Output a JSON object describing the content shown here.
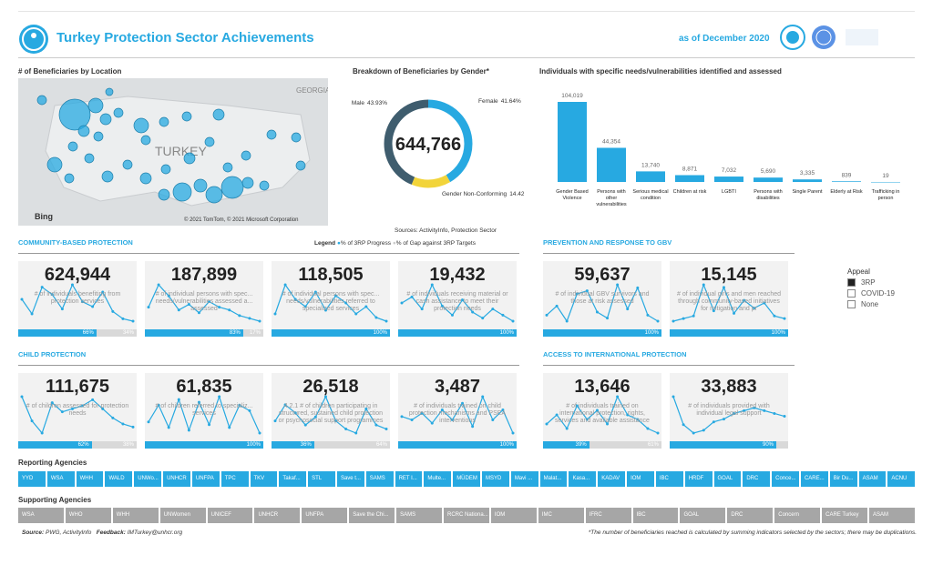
{
  "header": {
    "title": "Turkey Protection Sector Achievements",
    "date": "as of December 2020"
  },
  "map": {
    "title": "# of Beneficiaries by Location",
    "country": "TURKEY",
    "neighbour": "GEORGIA",
    "provider": "Bing",
    "credit": "© 2021 TomTom, © 2021 Microsoft Corporation"
  },
  "chart_data": [
    {
      "type": "pie",
      "title": "Breakdown of Beneficiaries by Gender*",
      "total": "644,766",
      "categories": [
        "Female",
        "Gender Non-Conforming",
        "Male"
      ],
      "values": [
        41.64,
        14.42,
        43.93
      ],
      "value_labels": [
        "41.64%",
        "14.42%",
        "43.93%"
      ],
      "colors": [
        "#27a9e1",
        "#f2d43a",
        "#3f5d6e"
      ],
      "source": "Sources: ActivityInfo, Protection Sector"
    },
    {
      "type": "bar",
      "title": "Individuals with specific needs/vulnerabilities identified and assessed",
      "categories": [
        "Gender Based Violence",
        "Persons with other vulnerabilities",
        "Serious medical condition",
        "Children at risk",
        "LGBTI",
        "Persons with disabilities",
        "Single Parent",
        "Elderly at Risk",
        "Trafficking in person"
      ],
      "values": [
        104019,
        44354,
        13740,
        8871,
        7032,
        5690,
        3335,
        839,
        19
      ],
      "value_labels": [
        "104,019",
        "44,354",
        "13,740",
        "8,871",
        "7,032",
        "5,690",
        "3,335",
        "839",
        "19"
      ],
      "color": "#27a9e1"
    }
  ],
  "legend": {
    "title": "Legend",
    "progress": "% of 3RP Progress",
    "gap": "% of Gap against 3RP Targets"
  },
  "appeal": {
    "title": "Appeal",
    "options": [
      "3RP",
      "COVID-19",
      "None"
    ]
  },
  "sections": [
    {
      "title": "COMMUNITY-BASED PROTECTION",
      "cards": [
        {
          "value": "624,944",
          "label": "# of individuals benefiting from protection services",
          "progress": 66,
          "progress_label": "66%",
          "gap": 34,
          "gap_label": "34%",
          "trend": [
            60,
            30,
            85,
            70,
            40,
            90,
            55,
            45,
            75,
            35,
            20,
            15
          ]
        },
        {
          "value": "187,899",
          "label": "# of individual persons with spec... needs/vulnerabilities assessed a... assessed",
          "progress": 83,
          "progress_label": "83%",
          "gap": 17,
          "gap_label": "17%",
          "trend": [
            40,
            80,
            60,
            35,
            45,
            30,
            50,
            40,
            35,
            25,
            20,
            15
          ]
        },
        {
          "value": "118,505",
          "label": "# of individual persons with spec... needs/vulnerabilities referred to specialized services",
          "progress": 100,
          "progress_label": "100%",
          "trend": [
            30,
            70,
            50,
            40,
            60,
            35,
            55,
            45,
            30,
            40,
            25,
            20
          ]
        },
        {
          "value": "19,432",
          "label": "# of individuals receiving material or cash assistance to meet their protection needs",
          "progress": 100,
          "progress_label": "100%",
          "trend": [
            50,
            60,
            40,
            80,
            45,
            30,
            55,
            35,
            25,
            40,
            30,
            20
          ]
        }
      ]
    },
    {
      "title": "PREVENTION AND RESPONSE TO GBV",
      "cards": [
        {
          "value": "59,637",
          "label": "# of individual GBV survivors and those at risk assessed",
          "progress": 100,
          "progress_label": "100%",
          "trend": [
            40,
            55,
            30,
            75,
            80,
            45,
            35,
            90,
            50,
            85,
            40,
            30
          ]
        },
        {
          "value": "15,145",
          "label": "# of individual girls and men reached through community-based initiatives for mitigation and pr",
          "progress": 100,
          "progress_label": "100%",
          "trend": [
            20,
            25,
            30,
            90,
            40,
            85,
            35,
            60,
            45,
            55,
            30,
            25
          ]
        }
      ]
    },
    {
      "title": "CHILD PROTECTION",
      "cards": [
        {
          "value": "111,675",
          "label": "# of children assessed for protection needs",
          "progress": 62,
          "progress_label": "62%",
          "gap": 38,
          "gap_label": "38%",
          "trend": [
            80,
            40,
            20,
            70,
            55,
            60,
            65,
            75,
            60,
            45,
            35,
            30
          ]
        },
        {
          "value": "61,835",
          "label": "# of children referred to specializ... services",
          "progress": 100,
          "progress_label": "100%",
          "trend": [
            40,
            70,
            30,
            80,
            25,
            75,
            35,
            85,
            30,
            70,
            60,
            20
          ]
        },
        {
          "value": "26,518",
          "label": "4.2.1 # of children participating in structured, sustained child protection or psychosocial support programmes",
          "progress": 36,
          "progress_label": "36%",
          "gap": 64,
          "gap_label": "64%",
          "trend": [
            30,
            50,
            40,
            25,
            35,
            60,
            30,
            20,
            15,
            45,
            25,
            20
          ]
        },
        {
          "value": "3,487",
          "label": "# of individuals trained on child protection mechanisms and PSEA interventions",
          "progress": 100,
          "progress_label": "100%",
          "trend": [
            50,
            45,
            55,
            40,
            60,
            45,
            70,
            35,
            80,
            45,
            60,
            25
          ]
        }
      ]
    },
    {
      "title": "ACCESS TO INTERNATIONAL PROTECTION",
      "cards": [
        {
          "value": "13,646",
          "label": "# of individuals trained on international protection, rights, services and available assistance",
          "progress": 39,
          "progress_label": "39%",
          "gap": 61,
          "gap_label": "61%",
          "trend": [
            40,
            50,
            35,
            60,
            45,
            55,
            40,
            70,
            50,
            45,
            35,
            30
          ]
        },
        {
          "value": "33,883",
          "label": "# of individuals provided with individual legal support",
          "progress": 90,
          "progress_label": "90%",
          "gap": 10,
          "trend": [
            80,
            30,
            15,
            20,
            35,
            40,
            50,
            55,
            60,
            55,
            50,
            45
          ]
        }
      ]
    }
  ],
  "reporting": {
    "title": "Reporting Agencies",
    "items": [
      "YYD",
      "WSA",
      "WHH",
      "WALD",
      "UNWo...",
      "UNHCR",
      "UNFPA",
      "TPC",
      "TKV",
      "Takaf...",
      "STL",
      "Save t...",
      "SAMS",
      "RET I...",
      "Multe...",
      "MÜDEM",
      "MSYD",
      "Mavi ...",
      "Malat...",
      "Kasa...",
      "KADAV",
      "IOM",
      "IBC",
      "HRDF",
      "GOAL",
      "DRC",
      "Conce...",
      "CARE...",
      "Bir Du...",
      "ASAM",
      "ACNU"
    ]
  },
  "supporting": {
    "title": "Supporting Agencies",
    "items": [
      "WSA",
      "WHO",
      "WHH",
      "UNWomen",
      "UNICEF",
      "UNHCR",
      "UNFPA",
      "Save the Chi...",
      "SAMS",
      "RCRC Nationa...",
      "IOM",
      "IMC",
      "IFRC",
      "IBC",
      "GOAL",
      "DRC",
      "Concern",
      "CARE Turkey",
      "ASAM"
    ]
  },
  "footer": {
    "source_label": "Source:",
    "source": "PWG, ActivityInfo",
    "feedback_label": "Feedback:",
    "feedback": "IMTurkey@unhcr.org",
    "note": "*The number of beneficiaries reached is calculated by summing indicators selected by the sectors; there may be duplications."
  }
}
